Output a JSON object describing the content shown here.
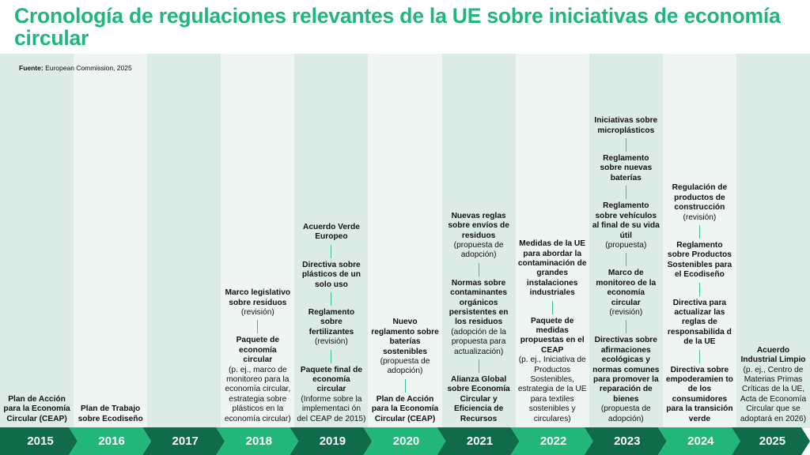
{
  "title": "Cronología de regulaciones relevantes de la UE sobre iniciativas de economía circular",
  "source": {
    "label": "Fuente:",
    "text": "European Commission, 2025"
  },
  "colors": {
    "accent": "#1fb77b",
    "arrow_dark": "#106b4a",
    "arrow_light": "#22b779",
    "column_a": "#dcebe6",
    "column_b": "#eef5f3"
  },
  "chart_data": {
    "type": "table",
    "years": [
      {
        "year": "2015",
        "events": [
          {
            "title": "Plan de Acción para la Economía Circular (CEAP)",
            "note": ""
          }
        ]
      },
      {
        "year": "2016",
        "events": [
          {
            "title": "Plan de Trabajo sobre Ecodiseño",
            "note": ""
          }
        ]
      },
      {
        "year": "2017",
        "events": []
      },
      {
        "year": "2018",
        "events": [
          {
            "title": "Marco legislativo sobre residuos",
            "note": "(revisión)"
          },
          {
            "title": "Paquete de economía circular",
            "note": "(p. ej., marco de monitoreo para la economía circular, estrategia sobre plásticos en la economía circular)"
          }
        ]
      },
      {
        "year": "2019",
        "events": [
          {
            "title": "Acuerdo Verde Europeo",
            "note": ""
          },
          {
            "title": "Directiva sobre plásticos de un solo uso",
            "note": ""
          },
          {
            "title": "Reglamento sobre fertilizantes",
            "note": "(revisión)"
          },
          {
            "title": "Paquete final de economía circular",
            "note": "(Informe sobre la implementaci ón del CEAP de 2015)"
          }
        ]
      },
      {
        "year": "2020",
        "events": [
          {
            "title": "Nuevo reglamento sobre baterías sostenibles",
            "note": "(propuesta de adopción)"
          },
          {
            "title": "Plan de Acción para la Economía Circular (CEAP)",
            "note": ""
          }
        ]
      },
      {
        "year": "2021",
        "events": [
          {
            "title": "Nuevas reglas sobre envíos de residuos",
            "note": "(propuesta de adopción)"
          },
          {
            "title": "Normas sobre contaminantes orgánicos persistentes en los residuos",
            "note": "(adopción de la propuesta para actualización)"
          },
          {
            "title": "Alianza Global sobre Economía Circular y Eficiencia de Recursos",
            "note": ""
          }
        ]
      },
      {
        "year": "2022",
        "events": [
          {
            "title": "Medidas de la UE para abordar la contaminación de grandes instalaciones industriales",
            "note": ""
          },
          {
            "title": "Paquete de medidas propuestas en el CEAP",
            "note": "(p. ej., Iniciativa de Productos Sostenibles, estrategia de la UE para textiles sostenibles y circulares)"
          }
        ]
      },
      {
        "year": "2023",
        "events": [
          {
            "title": "Iniciativas sobre microplásticos",
            "note": ""
          },
          {
            "title": "Reglamento sobre nuevas baterías",
            "note": ""
          },
          {
            "title": "Reglamento sobre vehículos al final de su vida útil",
            "note": "(propuesta)"
          },
          {
            "title": "Marco de monitoreo de la economía circular",
            "note": "(revisión)"
          },
          {
            "title": "Directivas sobre afirmaciones ecológicas y normas comunes para promover la reparación de bienes",
            "note": "(propuesta de adopción)"
          }
        ]
      },
      {
        "year": "2024",
        "events": [
          {
            "title": "Regulación de productos de construcción",
            "note": "(revisión)"
          },
          {
            "title": "Reglamento sobre Productos Sostenibles para el Ecodiseño",
            "note": ""
          },
          {
            "title": "Directiva para actualizar las reglas de responsabilida d de la UE",
            "note": ""
          },
          {
            "title": "Directiva sobre empoderamien to de los consumidores para la transición verde",
            "note": ""
          }
        ]
      },
      {
        "year": "2025",
        "events": [
          {
            "title": "Acuerdo Industrial Limpio",
            "note": "(p. ej., Centro de Materias Primas Críticas de la UE, Acta de Economía Circular que se adoptará en 2026)"
          }
        ]
      }
    ]
  }
}
